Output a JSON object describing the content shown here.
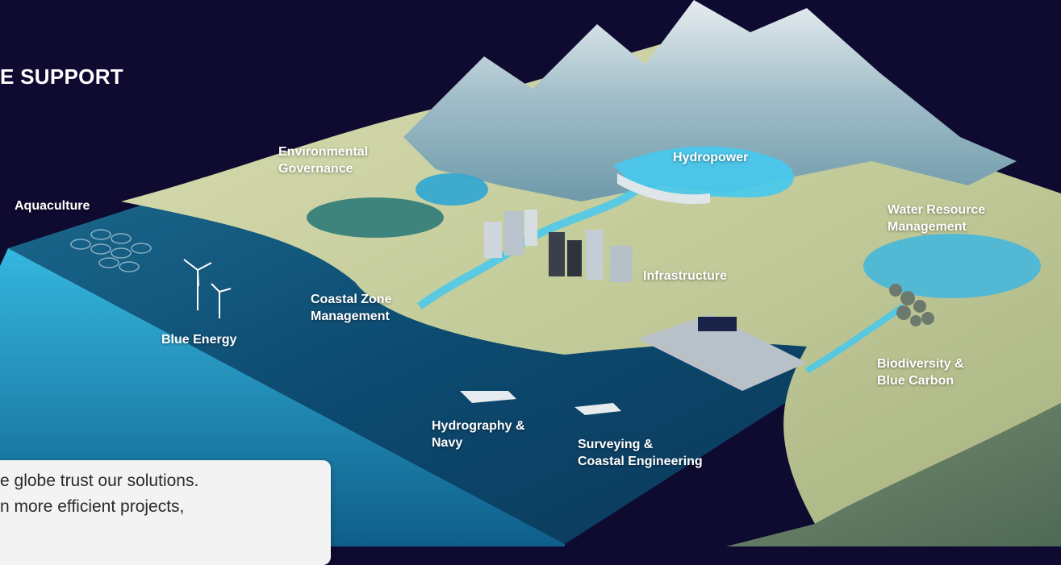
{
  "heading": "E SUPPORT",
  "labels": {
    "environmental_governance": [
      "Environmental",
      "Governance"
    ],
    "hydropower": "Hydropower",
    "aquaculture": "Aquaculture",
    "water_resource": [
      "Water Resource",
      "Management"
    ],
    "infrastructure": "Infrastructure",
    "coastal_zone": [
      "Coastal Zone",
      "Management"
    ],
    "blue_energy": "Blue Energy",
    "biodiversity": [
      "Biodiversity &",
      "Blue Carbon"
    ],
    "hydrography": [
      "Hydrography &",
      "Navy"
    ],
    "surveying": [
      "Surveying &",
      "Coastal Engineering"
    ]
  },
  "card": {
    "line1": "e globe trust our solutions.",
    "line2": "n more efficient projects,"
  },
  "colors": {
    "background": "#0e0a30",
    "water_deep": "#0f4a73",
    "water_light": "#46c9ee",
    "land": "#c9cf9c",
    "mountain": "#8fb6c4",
    "card_bg": "#f3f3f4"
  }
}
